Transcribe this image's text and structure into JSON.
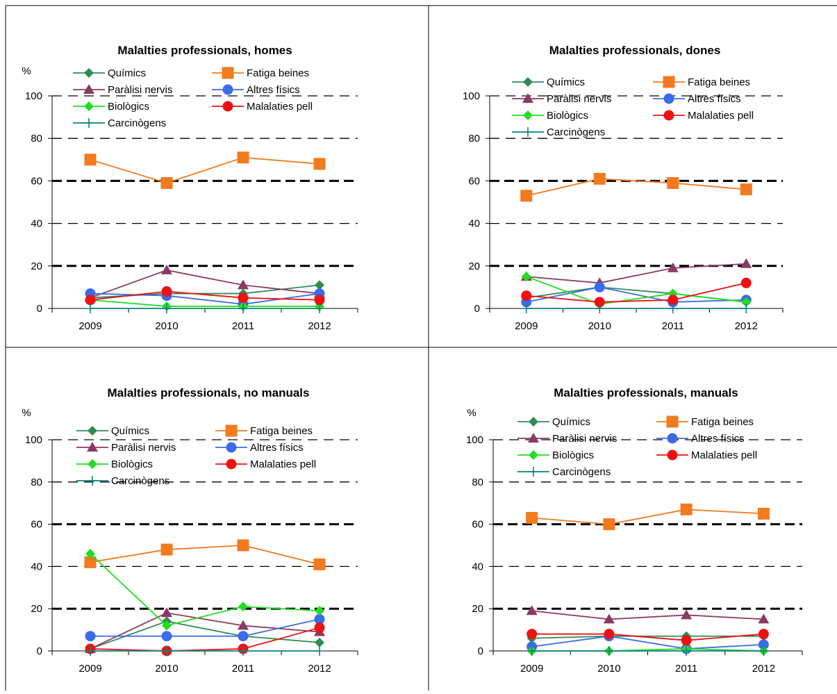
{
  "legend_order": [
    "quimics",
    "fatiga",
    "paralisi",
    "altres",
    "biologics",
    "pell",
    "carcinogens"
  ],
  "series_style": {
    "quimics": {
      "name": "Químics",
      "color": "#2e8b57",
      "marker": "diamond"
    },
    "fatiga": {
      "name": "Fatiga beines",
      "color": "#f37a1f",
      "marker": "square"
    },
    "paralisi": {
      "name": "Paràlisi nervis",
      "color": "#8b3a62",
      "marker": "triangle"
    },
    "altres": {
      "name": "Altres físics",
      "color": "#3b6be8",
      "marker": "circle"
    },
    "biologics": {
      "name": "Biològics",
      "color": "#22dd22",
      "marker": "diamond"
    },
    "pell": {
      "name": "Malalaties pell",
      "color": "#ee1111",
      "marker": "circle"
    },
    "carcinogens": {
      "name": "Carcinògens",
      "color": "#118080",
      "marker": "plus"
    }
  },
  "chart_data": [
    {
      "type": "line",
      "title": "Malalties professionals, homes",
      "ylabel": "%",
      "categories": [
        "2009",
        "2010",
        "2011",
        "2012"
      ],
      "ylim": [
        0,
        100
      ],
      "yticks": [
        0,
        20,
        40,
        60,
        80,
        100
      ],
      "legend_position": "top",
      "series": [
        {
          "key": "quimics",
          "name": "Químics",
          "values": [
            5,
            7,
            7,
            11
          ]
        },
        {
          "key": "fatiga",
          "name": "Fatiga beines",
          "values": [
            70,
            59,
            71,
            68
          ]
        },
        {
          "key": "paralisi",
          "name": "Paràlisi nervis",
          "values": [
            5,
            18,
            11,
            7
          ]
        },
        {
          "key": "altres",
          "name": "Altres físics",
          "values": [
            7,
            6,
            2,
            7
          ]
        },
        {
          "key": "biologics",
          "name": "Biològics",
          "values": [
            4,
            1,
            1,
            1
          ]
        },
        {
          "key": "pell",
          "name": "Malalaties pell",
          "values": [
            4,
            8,
            5,
            4
          ]
        },
        {
          "key": "carcinogens",
          "name": "Carcinògens",
          "values": [
            0,
            0,
            0,
            0
          ]
        }
      ]
    },
    {
      "type": "line",
      "title": "Malalties professionals, dones",
      "ylabel": "",
      "categories": [
        "2009",
        "2010",
        "2011",
        "2012"
      ],
      "ylim": [
        0,
        110
      ],
      "yticks": [
        0,
        20,
        40,
        60,
        80,
        100
      ],
      "legend_position": "top",
      "series": [
        {
          "key": "quimics",
          "name": "Químics",
          "values": [
            5,
            10,
            7,
            3
          ]
        },
        {
          "key": "fatiga",
          "name": "Fatiga beines",
          "values": [
            53,
            61,
            59,
            56
          ]
        },
        {
          "key": "paralisi",
          "name": "Paràlisi nervis",
          "values": [
            15,
            12,
            19,
            21
          ]
        },
        {
          "key": "altres",
          "name": "Altres físics",
          "values": [
            3,
            10,
            3,
            4
          ]
        },
        {
          "key": "biologics",
          "name": "Biològics",
          "values": [
            15,
            2,
            7,
            3
          ]
        },
        {
          "key": "pell",
          "name": "Malalaties pell",
          "values": [
            6,
            3,
            4,
            12
          ]
        },
        {
          "key": "carcinogens",
          "name": "Carcinògens",
          "values": [
            0,
            0,
            0,
            0
          ]
        }
      ]
    },
    {
      "type": "line",
      "title": "Malalties professionals, no manuals",
      "ylabel": "%",
      "categories": [
        "2009",
        "2010",
        "2011",
        "2012"
      ],
      "ylim": [
        0,
        100
      ],
      "yticks": [
        0,
        20,
        40,
        60,
        80,
        100
      ],
      "legend_position": "top",
      "series": [
        {
          "key": "quimics",
          "name": "Químics",
          "values": [
            1,
            14,
            7,
            4
          ]
        },
        {
          "key": "fatiga",
          "name": "Fatiga beines",
          "values": [
            42,
            48,
            50,
            41
          ]
        },
        {
          "key": "paralisi",
          "name": "Paràlisi nervis",
          "values": [
            1,
            18,
            12,
            9
          ]
        },
        {
          "key": "altres",
          "name": "Altres físics",
          "values": [
            7,
            7,
            7,
            15
          ]
        },
        {
          "key": "biologics",
          "name": "Biològics",
          "values": [
            46,
            12,
            21,
            19
          ]
        },
        {
          "key": "pell",
          "name": "Malalaties pell",
          "values": [
            1,
            0,
            1,
            11
          ]
        },
        {
          "key": "carcinogens",
          "name": "Carcinògens",
          "values": [
            0,
            0,
            0,
            0
          ]
        }
      ]
    },
    {
      "type": "line",
      "title": "Malalties professionals, manuals",
      "ylabel": "%",
      "categories": [
        "2009",
        "2010",
        "2011",
        "2012"
      ],
      "ylim": [
        0,
        100
      ],
      "yticks": [
        0,
        20,
        40,
        60,
        80,
        100
      ],
      "legend_position": "top",
      "series": [
        {
          "key": "quimics",
          "name": "Químics",
          "values": [
            6,
            7,
            7,
            7
          ]
        },
        {
          "key": "fatiga",
          "name": "Fatiga beines",
          "values": [
            63,
            60,
            67,
            65
          ]
        },
        {
          "key": "paralisi",
          "name": "Paràlisi nervis",
          "values": [
            19,
            15,
            17,
            15
          ]
        },
        {
          "key": "altres",
          "name": "Altres físics",
          "values": [
            2,
            7,
            1,
            3
          ]
        },
        {
          "key": "biologics",
          "name": "Biològics",
          "values": [
            0,
            0,
            1,
            0
          ]
        },
        {
          "key": "pell",
          "name": "Malalaties pell",
          "values": [
            8,
            8,
            5,
            8
          ]
        },
        {
          "key": "carcinogens",
          "name": "Carcinògens",
          "values": [
            0,
            0,
            0,
            0
          ]
        }
      ]
    }
  ]
}
